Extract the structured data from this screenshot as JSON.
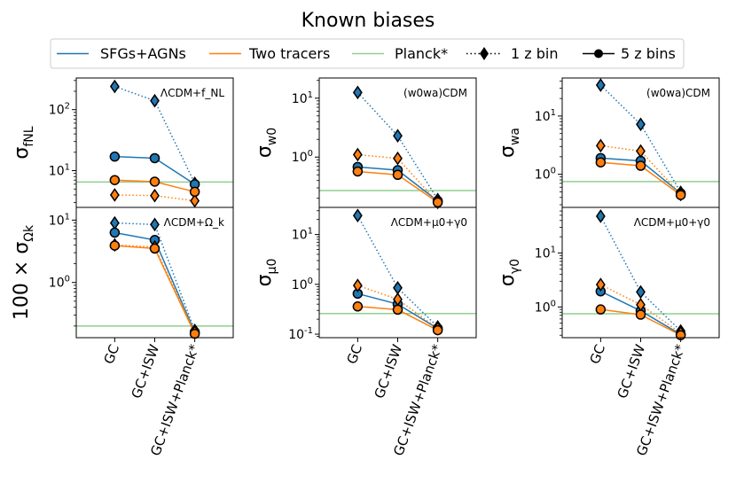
{
  "figure": {
    "title": "Known biases",
    "colors": {
      "sfg": "#1f77b4",
      "two": "#ff7f0e",
      "planck": "#8fcf8f"
    },
    "x_categories": [
      "GC",
      "GC+ISW",
      "GC+ISW+Planck*"
    ]
  },
  "legend": {
    "entries": [
      {
        "label": "SFGs+AGNs",
        "style": "line",
        "color": "#1f77b4"
      },
      {
        "label": "Two tracers",
        "style": "line",
        "color": "#ff7f0e"
      },
      {
        "label": "Planck*",
        "style": "line",
        "color": "#8fcf8f"
      },
      {
        "label": "1 z bin",
        "style": "dotted-diamond",
        "color": "#000000"
      },
      {
        "label": "5 z bins",
        "style": "solid-circle",
        "color": "#000000"
      }
    ]
  },
  "chart_data": [
    {
      "type": "line",
      "yscale": "log",
      "ylabel": "σ_fNL",
      "annotation": "ΛCDM+f_NL",
      "ylim": [
        2.5,
        330
      ],
      "ytick_values": [
        10,
        100
      ],
      "ytick_labels": [
        "10^1",
        "10^2"
      ],
      "categories": [
        "GC",
        "GC+ISW",
        "GC+ISW+Planck*"
      ],
      "planck": 6.5,
      "series": [
        {
          "name": "SFGs+AGNs",
          "bins": "1 z bin",
          "values": [
            240,
            140,
            6.2
          ]
        },
        {
          "name": "SFGs+AGNs",
          "bins": "5 z bins",
          "values": [
            17,
            16,
            6.0
          ]
        },
        {
          "name": "Two tracers",
          "bins": "1 z bin",
          "values": [
            4.0,
            3.9,
            3.2
          ]
        },
        {
          "name": "Two tracers",
          "bins": "5 z bins",
          "values": [
            7.0,
            6.6,
            4.5
          ]
        }
      ]
    },
    {
      "type": "line",
      "yscale": "log",
      "ylabel": "σ_w0",
      "annotation": "(w0wa)CDM",
      "ylim": [
        0.14,
        22
      ],
      "ytick_values": [
        1,
        10
      ],
      "ytick_labels": [
        "10^0",
        "10^1"
      ],
      "categories": [
        "GC",
        "GC+ISW",
        "GC+ISW+Planck*"
      ],
      "planck": 0.27,
      "series": [
        {
          "name": "SFGs+AGNs",
          "bins": "1 z bin",
          "values": [
            12.5,
            2.3,
            0.19
          ]
        },
        {
          "name": "SFGs+AGNs",
          "bins": "5 z bins",
          "values": [
            0.68,
            0.6,
            0.18
          ]
        },
        {
          "name": "Two tracers",
          "bins": "1 z bin",
          "values": [
            1.1,
            0.95,
            0.17
          ]
        },
        {
          "name": "Two tracers",
          "bins": "5 z bins",
          "values": [
            0.57,
            0.5,
            0.17
          ]
        }
      ]
    },
    {
      "type": "line",
      "yscale": "log",
      "ylabel": "σ_wa",
      "annotation": "(w0wa)CDM",
      "ylim": [
        0.27,
        45
      ],
      "ytick_values": [
        1,
        10
      ],
      "ytick_labels": [
        "10^0",
        "10^1"
      ],
      "categories": [
        "GC",
        "GC+ISW",
        "GC+ISW+Planck*"
      ],
      "planck": 0.75,
      "series": [
        {
          "name": "SFGs+AGNs",
          "bins": "1 z bin",
          "values": [
            34,
            7.2,
            0.49
          ]
        },
        {
          "name": "SFGs+AGNs",
          "bins": "5 z bins",
          "values": [
            1.9,
            1.7,
            0.47
          ]
        },
        {
          "name": "Two tracers",
          "bins": "1 z bin",
          "values": [
            3.1,
            2.5,
            0.45
          ]
        },
        {
          "name": "Two tracers",
          "bins": "5 z bins",
          "values": [
            1.6,
            1.4,
            0.44
          ]
        }
      ]
    },
    {
      "type": "line",
      "yscale": "log",
      "ylabel": "100 × σ_Ωk",
      "annotation": "ΛCDM+Ω_k",
      "ylim": [
        0.13,
        16
      ],
      "ytick_values": [
        1,
        10
      ],
      "ytick_labels": [
        "10^0",
        "10^1"
      ],
      "categories": [
        "GC",
        "GC+ISW",
        "GC+ISW+Planck*"
      ],
      "planck": 0.2,
      "series": [
        {
          "name": "SFGs+AGNs",
          "bins": "1 z bin",
          "values": [
            9.0,
            8.5,
            0.17
          ]
        },
        {
          "name": "SFGs+AGNs",
          "bins": "5 z bins",
          "values": [
            6.3,
            4.8,
            0.16
          ]
        },
        {
          "name": "Two tracers",
          "bins": "1 z bin",
          "values": [
            4.0,
            3.7,
            0.16
          ]
        },
        {
          "name": "Two tracers",
          "bins": "5 z bins",
          "values": [
            3.9,
            3.5,
            0.15
          ]
        }
      ]
    },
    {
      "type": "line",
      "yscale": "log",
      "ylabel": "σ_μ0",
      "annotation": "ΛCDM+μ0+γ0",
      "ylim": [
        0.085,
        35
      ],
      "ytick_values": [
        0.1,
        1,
        10
      ],
      "ytick_labels": [
        "10^-1",
        "10^0",
        "10^1"
      ],
      "categories": [
        "GC",
        "GC+ISW",
        "GC+ISW+Planck*"
      ],
      "planck": 0.26,
      "series": [
        {
          "name": "SFGs+AGNs",
          "bins": "1 z bin",
          "values": [
            24,
            0.85,
            0.14
          ]
        },
        {
          "name": "SFGs+AGNs",
          "bins": "5 z bins",
          "values": [
            0.65,
            0.4,
            0.13
          ]
        },
        {
          "name": "Two tracers",
          "bins": "1 z bin",
          "values": [
            0.95,
            0.5,
            0.13
          ]
        },
        {
          "name": "Two tracers",
          "bins": "5 z bins",
          "values": [
            0.36,
            0.31,
            0.12
          ]
        }
      ]
    },
    {
      "type": "line",
      "yscale": "log",
      "ylabel": "σ_γ0",
      "annotation": "ΛCDM+μ0+γ0",
      "ylim": [
        0.27,
        70
      ],
      "ytick_values": [
        1,
        10
      ],
      "ytick_labels": [
        "10^0",
        "10^1"
      ],
      "categories": [
        "GC",
        "GC+ISW",
        "GC+ISW+Planck*"
      ],
      "planck": 0.75,
      "series": [
        {
          "name": "SFGs+AGNs",
          "bins": "1 z bin",
          "values": [
            48,
            1.9,
            0.36
          ]
        },
        {
          "name": "SFGs+AGNs",
          "bins": "5 z bins",
          "values": [
            1.95,
            0.85,
            0.31
          ]
        },
        {
          "name": "Two tracers",
          "bins": "1 z bin",
          "values": [
            2.6,
            1.1,
            0.33
          ]
        },
        {
          "name": "Two tracers",
          "bins": "5 z bins",
          "values": [
            0.9,
            0.72,
            0.3
          ]
        }
      ]
    }
  ]
}
